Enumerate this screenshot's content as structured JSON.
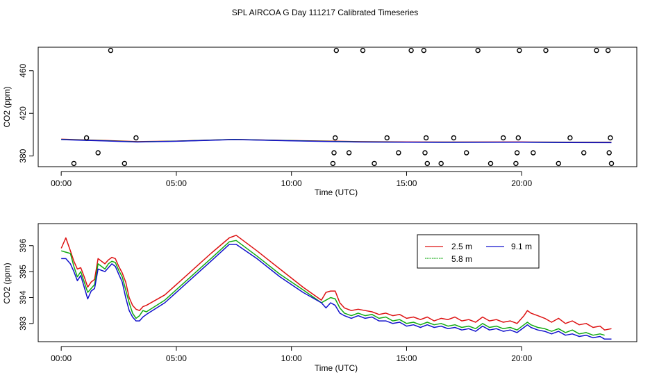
{
  "title": "SPL AIRCOA G  Day 111217  Calibrated Timeseries",
  "colors": {
    "red": "#dd1111",
    "green": "#11aa11",
    "blue": "#1111cc"
  },
  "chart_data": [
    {
      "type": "scatter",
      "xlabel": "Time (UTC)",
      "ylabel": "CO2 (ppm)",
      "xlim": [
        -1.0,
        25.0
      ],
      "ylim": [
        370,
        482
      ],
      "xticks": [
        0,
        5,
        10,
        15,
        20
      ],
      "xtick_labels": [
        "00:00",
        "05:00",
        "10:00",
        "15:00",
        "20:00"
      ],
      "yticks": [
        380,
        420,
        460
      ],
      "ytick_labels": [
        "380",
        "420",
        "460"
      ],
      "outlier_points": {
        "x": [
          0.55,
          1.1,
          1.6,
          2.15,
          2.75,
          3.25,
          11.8,
          11.85,
          11.9,
          11.95,
          12.5,
          13.1,
          13.6,
          14.15,
          14.65,
          15.2,
          15.75,
          15.8,
          15.85,
          15.9,
          16.5,
          17.05,
          17.6,
          18.1,
          18.65,
          19.2,
          19.75,
          19.8,
          19.85,
          19.9,
          20.5,
          21.05,
          21.6,
          22.1,
          22.7,
          23.25,
          23.75,
          23.8,
          23.85,
          23.9
        ],
        "y": [
          373,
          397,
          383,
          479,
          373,
          397,
          373,
          383,
          397,
          479,
          383,
          479,
          373,
          397,
          383,
          479,
          479,
          383,
          397,
          373,
          373,
          397,
          383,
          479,
          373,
          397,
          373,
          383,
          397,
          479,
          383,
          479,
          373,
          397,
          383,
          479,
          479,
          383,
          397,
          373
        ]
      },
      "series": [
        {
          "name": "2.5 m",
          "color": "#dd1111",
          "x": [
            0,
            2,
            3.3,
            5,
            7.5,
            10,
            11.8,
            13,
            15,
            17,
            20,
            22,
            23.9
          ],
          "y": [
            395.8,
            394.5,
            393.5,
            394.0,
            395.6,
            394.5,
            393.9,
            393.5,
            393.2,
            393.1,
            393.2,
            393.0,
            392.9
          ]
        },
        {
          "name": "5.8 m",
          "color": "#11aa11",
          "x": [
            0,
            2,
            3.3,
            5,
            7.5,
            10,
            11.8,
            13,
            15,
            17,
            20,
            22,
            23.9
          ],
          "y": [
            395.6,
            394.3,
            393.3,
            393.9,
            395.5,
            394.4,
            393.7,
            393.3,
            393.0,
            392.9,
            393.0,
            392.8,
            392.7
          ]
        },
        {
          "name": "9.1 m",
          "color": "#1111cc",
          "x": [
            0,
            2,
            3.3,
            5,
            7.5,
            10,
            11.8,
            13,
            15,
            17,
            20,
            22,
            23.9
          ],
          "y": [
            395.4,
            394.1,
            393.1,
            393.8,
            395.4,
            394.3,
            393.5,
            393.1,
            392.9,
            392.8,
            392.9,
            392.6,
            392.5
          ]
        }
      ]
    },
    {
      "type": "line",
      "xlabel": "Time (UTC)",
      "ylabel": "CO2 (ppm)",
      "xlim": [
        -1.0,
        25.0
      ],
      "ylim": [
        392.3,
        396.85
      ],
      "xticks": [
        0,
        5,
        10,
        15,
        20
      ],
      "xtick_labels": [
        "00:00",
        "05:00",
        "10:00",
        "15:00",
        "20:00"
      ],
      "yticks": [
        393,
        394,
        395,
        396
      ],
      "ytick_labels": [
        "393",
        "394",
        "395",
        "396"
      ],
      "legend": {
        "position": "top-right",
        "entries": [
          "2.5 m",
          "5.8 m",
          "9.1 m"
        ]
      },
      "series": [
        {
          "name": "2.5 m",
          "color": "#dd1111",
          "x": [
            0,
            0.2,
            0.4,
            0.55,
            0.7,
            0.85,
            1.0,
            1.15,
            1.3,
            1.45,
            1.6,
            1.75,
            1.9,
            2.05,
            2.2,
            2.35,
            2.5,
            2.65,
            2.8,
            2.95,
            3.1,
            3.25,
            3.4,
            3.55,
            3.7,
            4.5,
            5.5,
            6.5,
            7.3,
            7.6,
            8.5,
            9.5,
            10.5,
            11.3,
            11.5,
            11.7,
            11.9,
            12.1,
            12.3,
            12.6,
            12.9,
            13.2,
            13.5,
            13.8,
            14.1,
            14.4,
            14.7,
            15.0,
            15.3,
            15.6,
            15.9,
            16.2,
            16.5,
            16.8,
            17.1,
            17.4,
            17.7,
            18.0,
            18.3,
            18.6,
            18.9,
            19.2,
            19.5,
            19.8,
            20.1,
            20.25,
            20.4,
            20.7,
            21.0,
            21.3,
            21.6,
            21.9,
            22.2,
            22.5,
            22.8,
            23.1,
            23.4,
            23.6,
            23.9
          ],
          "y": [
            395.9,
            396.3,
            395.8,
            395.4,
            395.1,
            395.15,
            394.8,
            394.4,
            394.6,
            394.7,
            395.5,
            395.4,
            395.3,
            395.45,
            395.55,
            395.5,
            395.2,
            394.95,
            394.6,
            394.0,
            393.7,
            393.55,
            393.5,
            393.65,
            393.7,
            394.1,
            394.9,
            395.7,
            396.3,
            396.4,
            395.8,
            395.1,
            394.4,
            393.9,
            394.2,
            394.25,
            394.25,
            393.8,
            393.6,
            393.5,
            393.55,
            393.5,
            393.45,
            393.35,
            393.4,
            393.3,
            393.35,
            393.2,
            393.25,
            393.15,
            393.25,
            393.1,
            393.2,
            393.15,
            393.25,
            393.1,
            393.15,
            393.05,
            393.25,
            393.1,
            393.15,
            393.05,
            393.1,
            393.0,
            393.3,
            393.5,
            393.4,
            393.3,
            393.2,
            393.05,
            393.2,
            393.0,
            393.1,
            392.95,
            393.0,
            392.85,
            392.9,
            392.75,
            392.8
          ]
        },
        {
          "name": "5.8 m",
          "color": "#11aa11",
          "x": [
            0,
            0.2,
            0.4,
            0.55,
            0.7,
            0.85,
            1.0,
            1.15,
            1.3,
            1.45,
            1.6,
            1.75,
            1.9,
            2.05,
            2.2,
            2.35,
            2.5,
            2.65,
            2.8,
            2.95,
            3.1,
            3.25,
            3.4,
            3.55,
            3.7,
            4.5,
            5.5,
            6.5,
            7.3,
            7.6,
            8.5,
            9.5,
            10.5,
            11.3,
            11.5,
            11.7,
            11.9,
            12.1,
            12.3,
            12.6,
            12.9,
            13.2,
            13.5,
            13.8,
            14.1,
            14.4,
            14.7,
            15.0,
            15.3,
            15.6,
            15.9,
            16.2,
            16.5,
            16.8,
            17.1,
            17.4,
            17.7,
            18.0,
            18.3,
            18.6,
            18.9,
            19.2,
            19.5,
            19.8,
            20.1,
            20.25,
            20.4,
            20.7,
            21.0,
            21.3,
            21.6,
            21.9,
            22.2,
            22.5,
            22.8,
            23.1,
            23.4,
            23.6
          ],
          "y": [
            395.8,
            395.75,
            395.7,
            395.2,
            394.8,
            395.0,
            394.6,
            394.2,
            394.35,
            394.5,
            395.3,
            395.2,
            395.1,
            395.3,
            395.4,
            395.35,
            395.05,
            394.8,
            394.3,
            393.8,
            393.4,
            393.2,
            393.3,
            393.5,
            393.45,
            393.9,
            394.7,
            395.5,
            396.15,
            396.2,
            395.6,
            394.9,
            394.3,
            393.8,
            393.9,
            394.0,
            393.95,
            393.6,
            393.4,
            393.3,
            393.4,
            393.3,
            393.35,
            393.2,
            393.25,
            393.1,
            393.15,
            393.0,
            393.05,
            392.95,
            393.05,
            392.95,
            393.0,
            392.9,
            392.95,
            392.85,
            392.9,
            392.8,
            393.0,
            392.85,
            392.9,
            392.8,
            392.85,
            392.75,
            392.95,
            393.05,
            392.95,
            392.85,
            392.8,
            392.7,
            392.8,
            392.65,
            392.75,
            392.6,
            392.65,
            392.55,
            392.6,
            392.55
          ]
        },
        {
          "name": "9.1 m",
          "color": "#1111cc",
          "x": [
            0,
            0.2,
            0.4,
            0.55,
            0.7,
            0.85,
            1.0,
            1.15,
            1.3,
            1.45,
            1.6,
            1.75,
            1.9,
            2.05,
            2.2,
            2.35,
            2.5,
            2.65,
            2.8,
            2.95,
            3.1,
            3.25,
            3.4,
            3.55,
            3.7,
            4.5,
            5.5,
            6.5,
            7.3,
            7.6,
            8.5,
            9.5,
            10.5,
            11.3,
            11.5,
            11.7,
            11.9,
            12.1,
            12.3,
            12.6,
            12.9,
            13.2,
            13.5,
            13.8,
            14.1,
            14.4,
            14.7,
            15.0,
            15.3,
            15.6,
            15.9,
            16.2,
            16.5,
            16.8,
            17.1,
            17.4,
            17.7,
            18.0,
            18.3,
            18.6,
            18.9,
            19.2,
            19.5,
            19.8,
            20.1,
            20.25,
            20.4,
            20.7,
            21.0,
            21.3,
            21.6,
            21.9,
            22.2,
            22.5,
            22.8,
            23.1,
            23.4,
            23.6,
            23.9
          ],
          "y": [
            395.5,
            395.5,
            395.3,
            395.0,
            394.65,
            394.85,
            394.4,
            393.95,
            394.25,
            394.35,
            395.1,
            395.05,
            395.0,
            395.15,
            395.3,
            395.2,
            394.9,
            394.6,
            394.0,
            393.5,
            393.25,
            393.1,
            393.1,
            393.25,
            393.35,
            393.8,
            394.6,
            395.4,
            396.05,
            396.05,
            395.5,
            394.8,
            394.2,
            393.8,
            393.6,
            393.8,
            393.7,
            393.4,
            393.3,
            393.2,
            393.3,
            393.2,
            393.25,
            393.1,
            393.1,
            393.0,
            393.05,
            392.9,
            392.95,
            392.85,
            392.95,
            392.85,
            392.9,
            392.8,
            392.85,
            392.75,
            392.8,
            392.7,
            392.9,
            392.75,
            392.8,
            392.7,
            392.75,
            392.65,
            392.85,
            392.95,
            392.85,
            392.75,
            392.7,
            392.6,
            392.7,
            392.55,
            392.6,
            392.5,
            392.55,
            392.45,
            392.5,
            392.4,
            392.4
          ]
        }
      ]
    }
  ]
}
